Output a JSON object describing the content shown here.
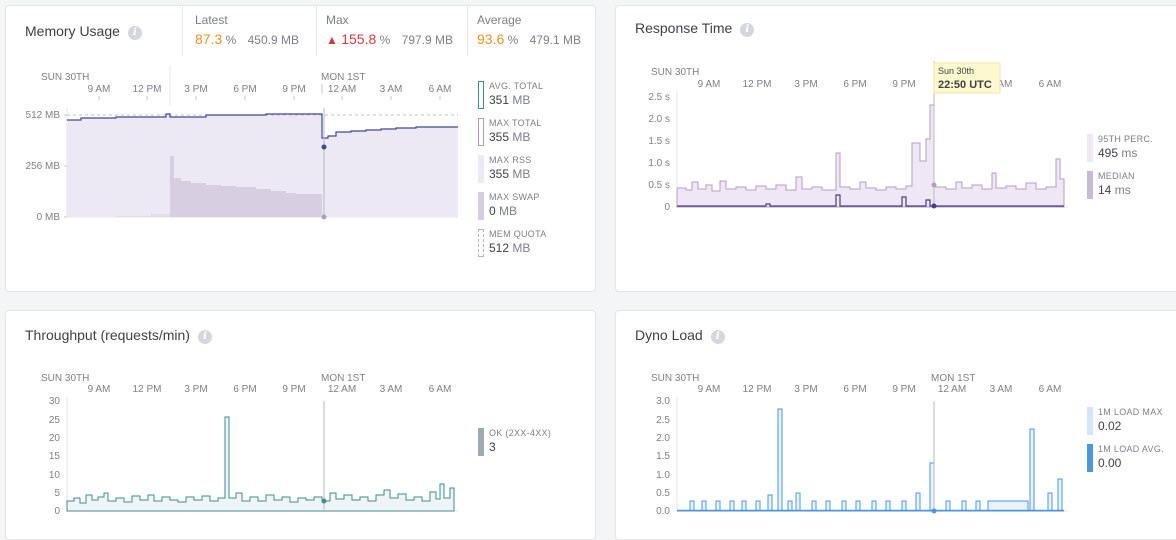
{
  "colors": {
    "avg": "#3e4899",
    "fill": "#ece9f4",
    "swap": "#d8cee2",
    "resp": "#b69bc5",
    "resp_fill": "#efe8f4",
    "median": "#4a3d88",
    "through": "#3c8f8a",
    "through_fill": "#eef4f7",
    "ok": "#9eabb3",
    "load": "#4b96dc",
    "load_light": "#d5e6f5"
  },
  "x_ticks": {
    "day1": "SUN 30TH",
    "day2": "MON 1ST",
    "labels": [
      "9 AM",
      "12 PM",
      "3 PM",
      "6 PM",
      "9 PM",
      "12 AM",
      "3 AM",
      "6 AM"
    ]
  },
  "memory": {
    "title": "Memory Usage",
    "latest": {
      "label": "Latest",
      "percent": "87.3",
      "pct_sign": "%",
      "mb": "450.9 MB"
    },
    "max": {
      "label": "Max",
      "percent": "155.8",
      "pct_sign": "%",
      "mb": "797.9 MB"
    },
    "average": {
      "label": "Average",
      "percent": "93.6",
      "pct_sign": "%",
      "mb": "479.1 MB"
    },
    "y_ticks": [
      "512 MB",
      "256 MB",
      "0 MB"
    ],
    "legend": [
      {
        "label": "AVG. TOTAL",
        "value": "351",
        "unit": "MB"
      },
      {
        "label": "MAX TOTAL",
        "value": "355",
        "unit": "MB"
      },
      {
        "label": "MAX RSS",
        "value": "355",
        "unit": "MB"
      },
      {
        "label": "MAX SWAP",
        "value": "0",
        "unit": "MB"
      },
      {
        "label": "MEM QUOTA",
        "value": "512",
        "unit": "MB"
      }
    ]
  },
  "response": {
    "title": "Response Time",
    "y_ticks": [
      "2.5 s",
      "2.0 s",
      "1.5 s",
      "1.0 s",
      "0.5 s",
      "0"
    ],
    "tooltip": {
      "date": "Sun 30th",
      "time": "22:50 UTC"
    },
    "legend": [
      {
        "label": "95TH PERC.",
        "value": "495",
        "unit": "ms"
      },
      {
        "label": "MEDIAN",
        "value": "14",
        "unit": "ms"
      }
    ]
  },
  "throughput": {
    "title": "Throughput (requests/min)",
    "y_ticks": [
      "30",
      "25",
      "20",
      "15",
      "10",
      "5",
      "0"
    ],
    "legend": [
      {
        "label": "OK (2XX-4XX)",
        "value": "3"
      }
    ]
  },
  "dyno": {
    "title": "Dyno Load",
    "y_ticks": [
      "3.0",
      "2.5",
      "2.0",
      "1.5",
      "1.0",
      "0.5",
      "0.0"
    ],
    "legend": [
      {
        "label": "1M LOAD MAX",
        "value": "0.02"
      },
      {
        "label": "1M LOAD AVG.",
        "value": "0.00"
      }
    ]
  }
}
